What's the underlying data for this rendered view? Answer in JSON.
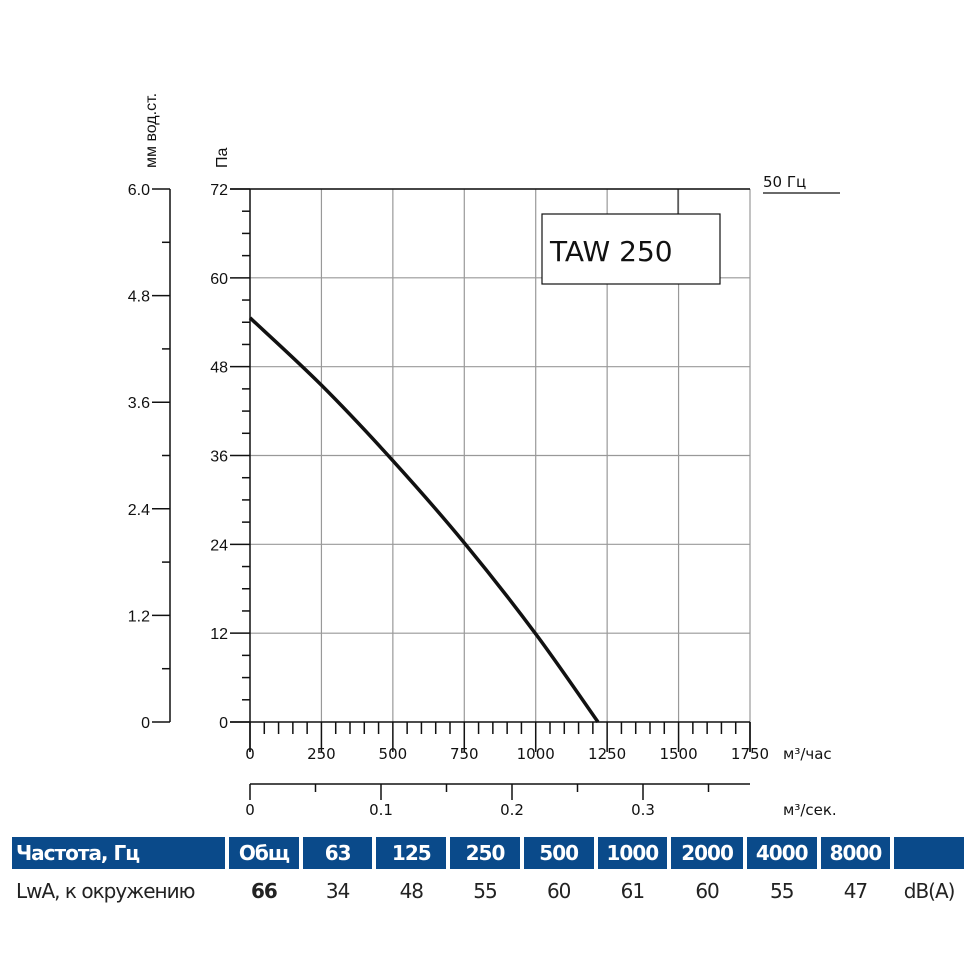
{
  "chart_data": {
    "type": "line",
    "title": "TAW 250",
    "frequency_label": "50 Гц",
    "xlabel": "м³/час",
    "x2label": "м³/сек.",
    "ylabel": "Па",
    "y2label": "мм вод.ст.",
    "xlim": [
      0,
      1750
    ],
    "ylim": [
      0,
      72
    ],
    "y2lim": [
      0,
      6.0
    ],
    "x2lim": [
      0,
      0.38
    ],
    "x_ticks": [
      "0",
      "250",
      "500",
      "750",
      "1000",
      "1250",
      "1500",
      "1750"
    ],
    "y_ticks": [
      "0",
      "12",
      "24",
      "36",
      "48",
      "60",
      "72"
    ],
    "y2_ticks": [
      "0",
      "1.2",
      "2.4",
      "3.6",
      "4.8",
      "6.0"
    ],
    "x2_ticks": [
      "0",
      "0.1",
      "0.2",
      "0.3"
    ],
    "grid": true,
    "series": [
      {
        "x": [
          0,
          250,
          500,
          750,
          1000,
          1218
        ],
        "y": [
          54.6,
          45.5,
          35.3,
          24.2,
          11.9,
          0
        ],
        "color": "#111111"
      }
    ]
  },
  "table": {
    "header": [
      "Частота, Гц",
      "Общ",
      "63",
      "125",
      "250",
      "500",
      "1000",
      "2000",
      "4000",
      "8000",
      ""
    ],
    "row": [
      "LwA, к окружению",
      "66",
      "34",
      "48",
      "55",
      "60",
      "61",
      "60",
      "55",
      "47",
      "dB(A)"
    ],
    "header_color": "#0a4a8a"
  }
}
